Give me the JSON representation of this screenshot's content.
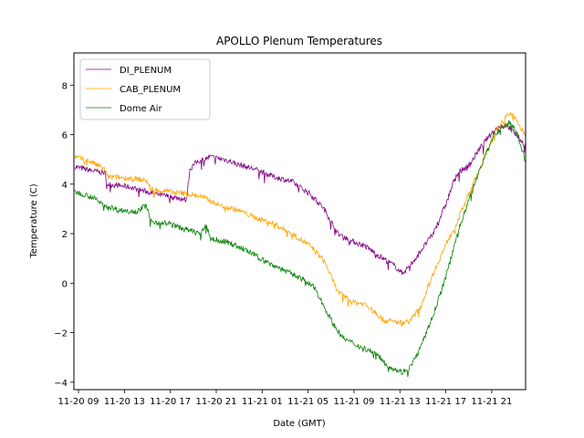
{
  "chart_data": {
    "type": "line",
    "title": "APOLLO Plenum Temperatures",
    "xlabel": "Date (GMT)",
    "ylabel": "Temperature (C)",
    "x_unit": "hours since 11-20 00:00 GMT",
    "xlim": [
      8.6,
      47.95
    ],
    "ylim": [
      -4.3,
      9.3
    ],
    "x_ticks": [
      {
        "value": 9,
        "label": "11-20 09"
      },
      {
        "value": 13,
        "label": "11-20 13"
      },
      {
        "value": 17,
        "label": "11-20 17"
      },
      {
        "value": 21,
        "label": "11-20 21"
      },
      {
        "value": 25,
        "label": "11-21 01"
      },
      {
        "value": 29,
        "label": "11-21 05"
      },
      {
        "value": 33,
        "label": "11-21 09"
      },
      {
        "value": 37,
        "label": "11-21 13"
      },
      {
        "value": 41,
        "label": "11-21 17"
      },
      {
        "value": 45,
        "label": "11-21 21"
      }
    ],
    "y_ticks": [
      -4,
      -2,
      0,
      2,
      4,
      6,
      8
    ],
    "grid": false,
    "legend_position": "top-left",
    "series": [
      {
        "name": "DI_PLENUM",
        "color": "#800080",
        "points": [
          [
            8.7,
            4.7
          ],
          [
            10.1,
            4.55
          ],
          [
            11.3,
            4.45
          ],
          [
            11.5,
            4.0
          ],
          [
            13.3,
            3.9
          ],
          [
            14.9,
            3.7
          ],
          [
            15.7,
            3.6
          ],
          [
            16.9,
            3.5
          ],
          [
            18.1,
            3.4
          ],
          [
            18.4,
            3.35
          ],
          [
            18.7,
            4.6
          ],
          [
            19.3,
            4.9
          ],
          [
            20.5,
            5.1
          ],
          [
            21.7,
            5.0
          ],
          [
            22.9,
            4.8
          ],
          [
            24.4,
            4.6
          ],
          [
            26.0,
            4.3
          ],
          [
            27.6,
            4.1
          ],
          [
            29.2,
            3.6
          ],
          [
            30.4,
            3.0
          ],
          [
            31.6,
            2.0
          ],
          [
            32.8,
            1.7
          ],
          [
            33.96,
            1.5
          ],
          [
            35.2,
            1.1
          ],
          [
            36.4,
            0.75
          ],
          [
            37.2,
            0.4
          ],
          [
            37.96,
            0.75
          ],
          [
            38.8,
            1.3
          ],
          [
            39.9,
            2.0
          ],
          [
            41.1,
            3.3
          ],
          [
            41.9,
            4.4
          ],
          [
            43.1,
            4.8
          ],
          [
            43.9,
            5.4
          ],
          [
            44.7,
            5.9
          ],
          [
            45.5,
            6.3
          ],
          [
            46.3,
            6.4
          ],
          [
            47.1,
            6.0
          ],
          [
            47.95,
            5.55
          ]
        ]
      },
      {
        "name": "CAB_PLENUM",
        "color": "#FFA500",
        "points": [
          [
            8.7,
            5.1
          ],
          [
            10.1,
            4.9
          ],
          [
            11.3,
            4.6
          ],
          [
            11.5,
            4.3
          ],
          [
            13.3,
            4.25
          ],
          [
            14.9,
            4.15
          ],
          [
            15.3,
            3.8
          ],
          [
            16.9,
            3.7
          ],
          [
            18.5,
            3.6
          ],
          [
            19.7,
            3.5
          ],
          [
            21.3,
            3.15
          ],
          [
            22.9,
            2.95
          ],
          [
            24.4,
            2.65
          ],
          [
            26.0,
            2.4
          ],
          [
            27.6,
            2.0
          ],
          [
            29.2,
            1.5
          ],
          [
            30.4,
            0.9
          ],
          [
            31.6,
            -0.35
          ],
          [
            32.8,
            -0.75
          ],
          [
            33.96,
            -0.85
          ],
          [
            35.6,
            -1.5
          ],
          [
            37.2,
            -1.6
          ],
          [
            37.96,
            -1.5
          ],
          [
            38.8,
            -0.95
          ],
          [
            39.9,
            0.4
          ],
          [
            41.1,
            1.65
          ],
          [
            41.9,
            2.4
          ],
          [
            43.1,
            3.7
          ],
          [
            44.3,
            5.0
          ],
          [
            45.5,
            6.3
          ],
          [
            46.3,
            6.75
          ],
          [
            46.8,
            6.85
          ],
          [
            47.5,
            6.3
          ],
          [
            47.95,
            5.9
          ]
        ]
      },
      {
        "name": "Dome Air",
        "color": "#008000",
        "points": [
          [
            8.7,
            3.7
          ],
          [
            10.1,
            3.5
          ],
          [
            11.3,
            3.15
          ],
          [
            12.5,
            2.95
          ],
          [
            14.1,
            2.9
          ],
          [
            14.9,
            3.15
          ],
          [
            15.3,
            2.5
          ],
          [
            16.9,
            2.4
          ],
          [
            18.1,
            2.2
          ],
          [
            19.7,
            2.0
          ],
          [
            20.1,
            2.4
          ],
          [
            20.5,
            1.8
          ],
          [
            22.1,
            1.65
          ],
          [
            23.7,
            1.3
          ],
          [
            25.2,
            0.9
          ],
          [
            26.8,
            0.55
          ],
          [
            28.4,
            0.2
          ],
          [
            29.6,
            -0.2
          ],
          [
            30.4,
            -0.95
          ],
          [
            31.2,
            -1.65
          ],
          [
            32.0,
            -2.2
          ],
          [
            33.2,
            -2.5
          ],
          [
            34.8,
            -2.8
          ],
          [
            36.0,
            -3.35
          ],
          [
            37.2,
            -3.6
          ],
          [
            37.96,
            -3.35
          ],
          [
            38.8,
            -2.6
          ],
          [
            39.9,
            -1.3
          ],
          [
            41.1,
            0.4
          ],
          [
            41.9,
            1.85
          ],
          [
            43.1,
            3.5
          ],
          [
            44.3,
            5.0
          ],
          [
            45.1,
            5.9
          ],
          [
            45.9,
            6.3
          ],
          [
            46.7,
            6.5
          ],
          [
            47.3,
            5.9
          ],
          [
            47.95,
            4.9
          ]
        ]
      }
    ]
  }
}
